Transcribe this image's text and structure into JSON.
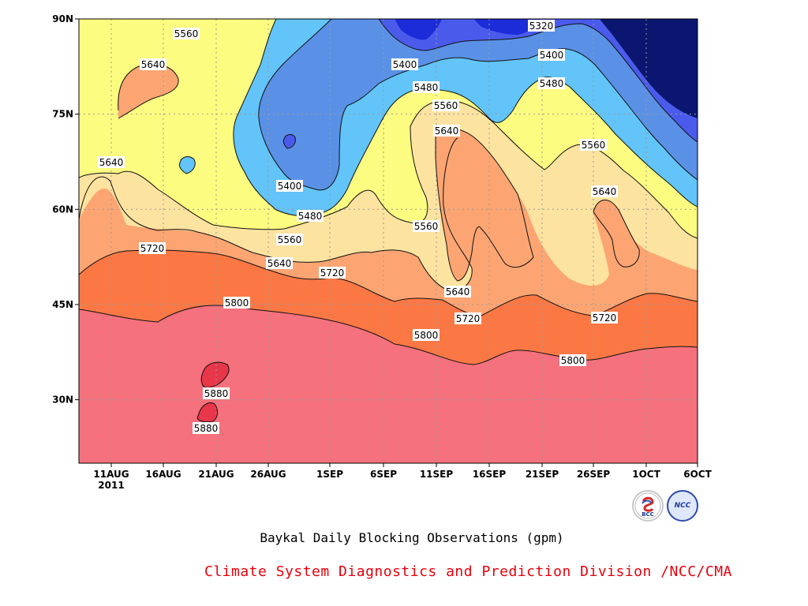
{
  "chart_data": {
    "type": "contour",
    "title": "Baykal Daily Blocking Observations (gpm)",
    "credit": "Climate System Diagnostics and Prediction Division /NCC/CMA",
    "x_tick_labels": [
      "11AUG",
      "16AUG",
      "21AUG",
      "26AUG",
      "1SEP",
      "6SEP",
      "11SEP",
      "16SEP",
      "21SEP",
      "26SEP",
      "1OCT",
      "6OCT"
    ],
    "x_year_label": "2011",
    "y_tick_labels": [
      "30N",
      "45N",
      "60N",
      "75N",
      "90N"
    ],
    "y_ticks": [
      30,
      45,
      60,
      75,
      90
    ],
    "ylim": [
      20,
      90
    ],
    "grid": true,
    "contour_levels": [
      5320,
      5400,
      5480,
      5560,
      5640,
      5720,
      5800,
      5880
    ],
    "fill_colors": {
      "lt5320": "#0a1670",
      "5320_5400": "#1c2cd8",
      "5400_5480": "#4a5bec",
      "5480_5560": "#5a91e6",
      "5560_5640": "#62c4f8",
      "5640_5720": "#fcfc80",
      "5720_5800": "#fde3a0",
      "5800_5880": "#fca573",
      "5880_5960": "#fb7845",
      "gt5880": "#f4717d",
      "peak": "#e8364a"
    },
    "contour_labels": [
      {
        "value": "5560"
      },
      {
        "value": "5640"
      },
      {
        "value": "5640"
      },
      {
        "value": "5400"
      },
      {
        "value": "5480"
      },
      {
        "value": "5560"
      },
      {
        "value": "5640"
      },
      {
        "value": "5720"
      },
      {
        "value": "5720"
      },
      {
        "value": "5800"
      },
      {
        "value": "5880"
      },
      {
        "value": "5880"
      },
      {
        "value": "5400"
      },
      {
        "value": "5480"
      },
      {
        "value": "5560"
      },
      {
        "value": "5640"
      },
      {
        "value": "5560"
      },
      {
        "value": "5640"
      },
      {
        "value": "5720"
      },
      {
        "value": "5800"
      },
      {
        "value": "5320"
      },
      {
        "value": "5400"
      },
      {
        "value": "5480"
      },
      {
        "value": "5560"
      },
      {
        "value": "5640"
      },
      {
        "value": "5720"
      },
      {
        "value": "5800"
      }
    ]
  },
  "logos": {
    "bcc": "BCC",
    "ncc": "NCC"
  }
}
